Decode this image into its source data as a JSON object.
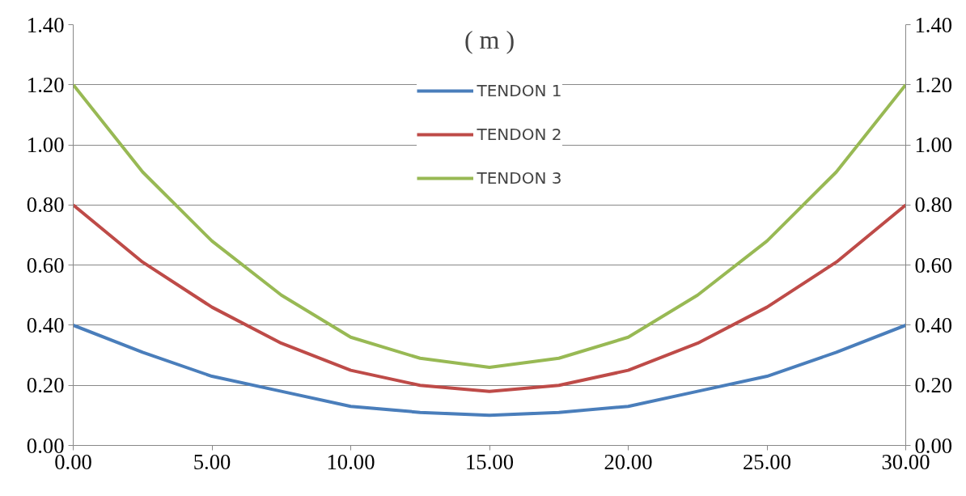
{
  "chart_data": {
    "type": "line",
    "title": "( m )",
    "x": [
      0,
      2.5,
      5,
      7.5,
      10,
      12.5,
      15,
      17.5,
      20,
      22.5,
      25,
      27.5,
      30
    ],
    "series": [
      {
        "name": "TENDON 1",
        "color": "#4a7ebb",
        "values": [
          0.4,
          0.31,
          0.23,
          0.18,
          0.13,
          0.11,
          0.1,
          0.11,
          0.13,
          0.18,
          0.23,
          0.31,
          0.4
        ]
      },
      {
        "name": "TENDON 2",
        "color": "#be4b48",
        "values": [
          0.8,
          0.61,
          0.46,
          0.34,
          0.25,
          0.2,
          0.18,
          0.2,
          0.25,
          0.34,
          0.46,
          0.61,
          0.8
        ]
      },
      {
        "name": "TENDON 3",
        "color": "#98b954",
        "values": [
          1.2,
          0.91,
          0.68,
          0.5,
          0.36,
          0.29,
          0.26,
          0.29,
          0.36,
          0.5,
          0.68,
          0.91,
          1.2
        ]
      }
    ],
    "xlim": [
      0,
      30
    ],
    "xticks": [
      {
        "value": 0,
        "label": "0.00"
      },
      {
        "value": 5,
        "label": "5.00"
      },
      {
        "value": 10,
        "label": "10.00"
      },
      {
        "value": 15,
        "label": "15.00"
      },
      {
        "value": 20,
        "label": "20.00"
      },
      {
        "value": 25,
        "label": "25.00"
      },
      {
        "value": 30,
        "label": "30.00"
      }
    ],
    "ylim": [
      0,
      1.4
    ],
    "yticks": [
      {
        "value": 0,
        "label": "0.00"
      },
      {
        "value": 0.2,
        "label": "0.20"
      },
      {
        "value": 0.4,
        "label": "0.40"
      },
      {
        "value": 0.6,
        "label": "0.60"
      },
      {
        "value": 0.8,
        "label": "0.80"
      },
      {
        "value": 1.0,
        "label": "1.00"
      },
      {
        "value": 1.2,
        "label": "1.20"
      },
      {
        "value": 1.4,
        "label": "1.40"
      }
    ],
    "y2lim": [
      0,
      1.4
    ],
    "y2ticks": [
      {
        "value": 0,
        "label": "0.00"
      },
      {
        "value": 0.2,
        "label": "0.20"
      },
      {
        "value": 0.4,
        "label": "0.40"
      },
      {
        "value": 0.6,
        "label": "0.60"
      },
      {
        "value": 0.8,
        "label": "0.80"
      },
      {
        "value": 1.0,
        "label": "1.00"
      },
      {
        "value": 1.2,
        "label": "1.20"
      },
      {
        "value": 1.4,
        "label": "1.40"
      }
    ],
    "grid": "y",
    "legend": "top",
    "marker": "none",
    "line_style": "solid"
  }
}
